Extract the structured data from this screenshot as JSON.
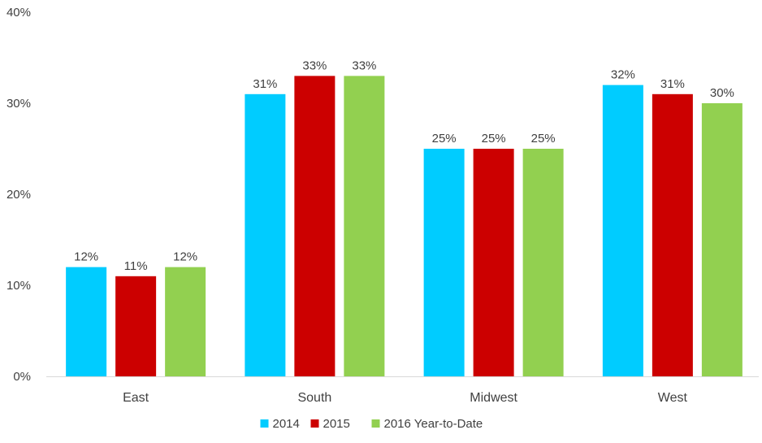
{
  "chart_data": {
    "type": "bar",
    "categories": [
      "East",
      "South",
      "Midwest",
      "West"
    ],
    "series": [
      {
        "name": "2014",
        "values": [
          12,
          31,
          25,
          32
        ],
        "labels": [
          "12%",
          "31%",
          "25%",
          "32%"
        ],
        "color": "#00CCFF"
      },
      {
        "name": "2015",
        "values": [
          11,
          33,
          25,
          31
        ],
        "labels": [
          "11%",
          "33%",
          "25%",
          "31%"
        ],
        "color": "#CC0000"
      },
      {
        "name": "2016 Year-to-Date",
        "values": [
          12,
          33,
          25,
          30
        ],
        "labels": [
          "12%",
          "33%",
          "25%",
          "30%"
        ],
        "color": "#92D050"
      }
    ],
    "yticks": [
      0,
      10,
      20,
      30,
      40
    ],
    "ytick_labels": [
      "0%",
      "10%",
      "20%",
      "30%",
      "40%"
    ],
    "ylim": [
      0,
      40
    ],
    "grid": false,
    "legend": "bottom",
    "colors": {
      "text": "#404040",
      "axis": "#D9D9D9"
    }
  }
}
